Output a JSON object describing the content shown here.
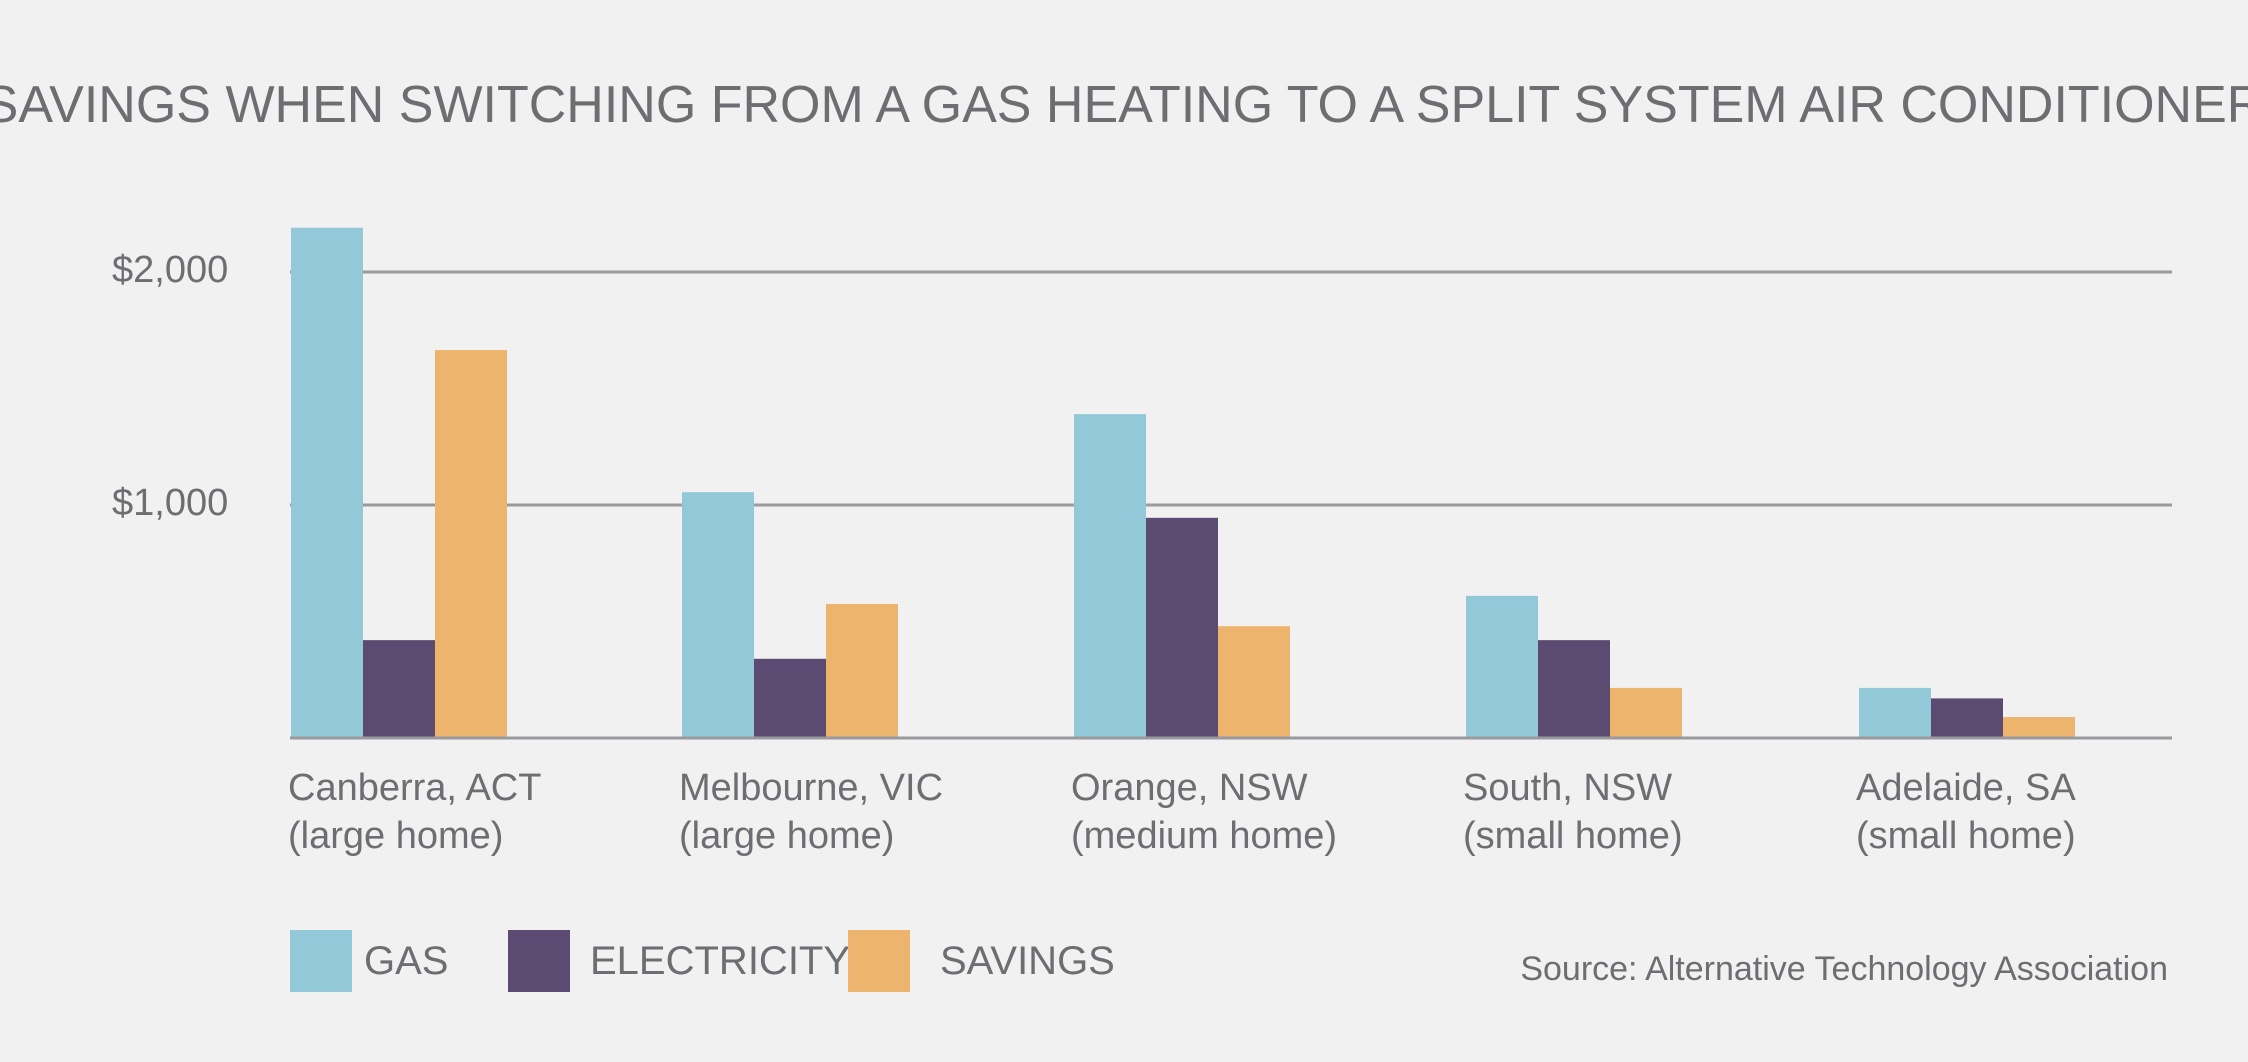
{
  "chart_data": {
    "type": "bar",
    "title": "SAVINGS WHEN SWITCHING FROM A GAS HEATING TO A SPLIT SYSTEM AIR CONDITIONER",
    "categories": [
      [
        "Canberra, ACT",
        "(large home)"
      ],
      [
        "Melbourne, VIC",
        "(large home)"
      ],
      [
        "Orange, NSW",
        "(medium home)"
      ],
      [
        "South, NSW",
        "(small home)"
      ],
      [
        "Adelaide, SA",
        "(small home)"
      ]
    ],
    "series": [
      {
        "name": "GAS",
        "color": "#92c8d8",
        "values": [
          2190,
          1055,
          1390,
          610,
          215
        ]
      },
      {
        "name": "ELECTRICITY",
        "color": "#5b4a72",
        "values": [
          420,
          340,
          945,
          420,
          170
        ]
      },
      {
        "name": "SAVINGS",
        "color": "#ecb46c",
        "values": [
          1665,
          575,
          480,
          215,
          90
        ]
      }
    ],
    "y_ticks": [
      {
        "value": 2000,
        "label": "$2,000"
      },
      {
        "value": 1000,
        "label": "$1,000"
      }
    ],
    "ylim": [
      0,
      2200
    ],
    "grid": true,
    "legend_position": "bottom-left",
    "source": "Source: Alternative Technology Association"
  }
}
